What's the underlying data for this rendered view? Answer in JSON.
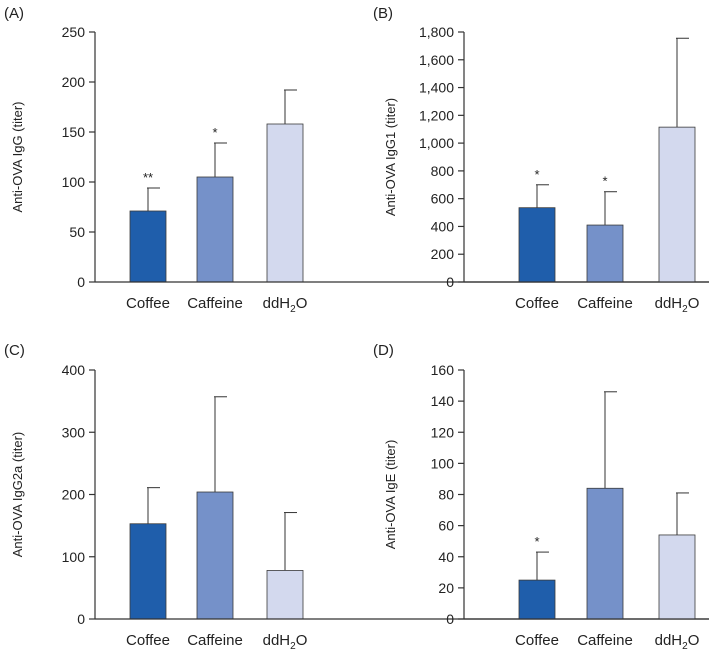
{
  "figure": {
    "background": "#ffffff"
  },
  "colors": {
    "coffee": "#1f5eab",
    "caffeine": "#7591c9",
    "ddh2o": "#d3d9ee",
    "axis": "#333333",
    "text": "#222222"
  },
  "chart_data": [
    {
      "type": "bar",
      "panel": "(A)",
      "title": "",
      "xlabel": "",
      "ylabel": "Anti-OVA IgG (titer)",
      "ylim": [
        0,
        250
      ],
      "yticks": [
        0,
        50,
        100,
        150,
        200,
        250
      ],
      "ytick_labels": [
        "0",
        "50",
        "100",
        "150",
        "200",
        "250"
      ],
      "categories": [
        "Coffee",
        "Caffeine",
        "ddH2O"
      ],
      "values": [
        71,
        105,
        158
      ],
      "error_upper": [
        94,
        139,
        192
      ],
      "significance": [
        "**",
        "*",
        ""
      ],
      "colors": [
        "#1f5eab",
        "#7591c9",
        "#d3d9ee"
      ]
    },
    {
      "type": "bar",
      "panel": "(B)",
      "title": "",
      "xlabel": "",
      "ylabel": "Anti-OVA IgG1 (titer)",
      "ylim": [
        0,
        1800
      ],
      "yticks": [
        0,
        200,
        400,
        600,
        800,
        1000,
        1200,
        1400,
        1600,
        1800
      ],
      "ytick_labels": [
        "0",
        "200",
        "400",
        "600",
        "800",
        "1,000",
        "1,200",
        "1,400",
        "1,600",
        "1,800"
      ],
      "categories": [
        "Coffee",
        "Caffeine",
        "ddH2O"
      ],
      "values": [
        535,
        410,
        1115
      ],
      "error_upper": [
        700,
        650,
        1755
      ],
      "significance": [
        "*",
        "*",
        ""
      ],
      "colors": [
        "#1f5eab",
        "#7591c9",
        "#d3d9ee"
      ]
    },
    {
      "type": "bar",
      "panel": "(C)",
      "title": "",
      "xlabel": "",
      "ylabel": "Anti-OVA IgG2a (titer)",
      "ylim": [
        0,
        400
      ],
      "yticks": [
        0,
        100,
        200,
        300,
        400
      ],
      "ytick_labels": [
        "0",
        "100",
        "200",
        "300",
        "400"
      ],
      "categories": [
        "Coffee",
        "Caffeine",
        "ddH2O"
      ],
      "values": [
        153,
        204,
        78
      ],
      "error_upper": [
        211,
        357,
        171
      ],
      "significance": [
        "",
        "",
        ""
      ],
      "colors": [
        "#1f5eab",
        "#7591c9",
        "#d3d9ee"
      ]
    },
    {
      "type": "bar",
      "panel": "(D)",
      "title": "",
      "xlabel": "",
      "ylabel": "Anti-OVA IgE (titer)",
      "ylim": [
        0,
        160
      ],
      "yticks": [
        0,
        20,
        40,
        60,
        80,
        100,
        120,
        140,
        160
      ],
      "ytick_labels": [
        "0",
        "20",
        "40",
        "60",
        "80",
        "100",
        "120",
        "140",
        "160"
      ],
      "categories": [
        "Coffee",
        "Caffeine",
        "ddH2O"
      ],
      "values": [
        25,
        84,
        54
      ],
      "error_upper": [
        43,
        146,
        81
      ],
      "significance": [
        "*",
        "",
        ""
      ],
      "colors": [
        "#1f5eab",
        "#7591c9",
        "#d3d9ee"
      ]
    }
  ]
}
